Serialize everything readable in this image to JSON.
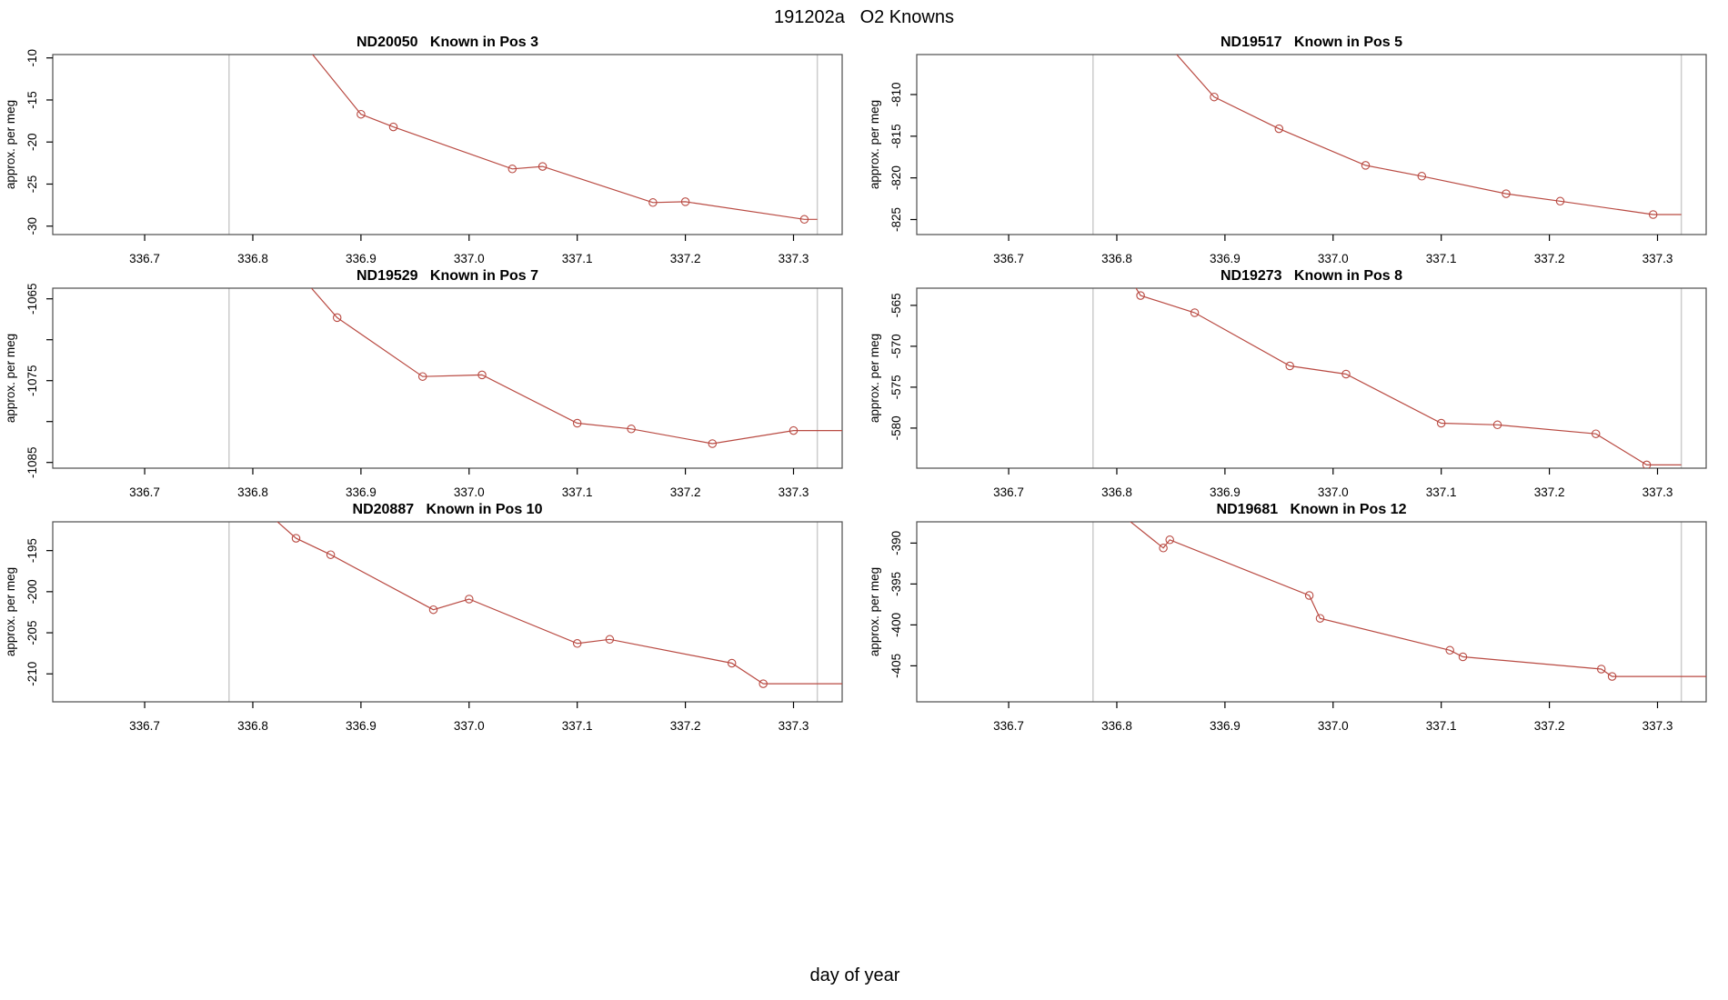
{
  "page": {
    "title": "191202a   O2 Knowns",
    "outer_xlabel": "day of year"
  },
  "colors": {
    "series": "#b94a42",
    "window_line": "#cccccc",
    "axis": "#000000",
    "box": "#4d4d4d"
  },
  "chart_data": [
    {
      "type": "line",
      "title": "ND20050   Known in Pos 3",
      "ylabel": "approx. per meg",
      "xlim": [
        336.615,
        337.345
      ],
      "ylim": [
        -31.0,
        -9.6
      ],
      "xtick_labels": [
        "336.7",
        "336.8",
        "336.9",
        "337.0",
        "337.1",
        "337.2",
        "337.3"
      ],
      "xticks": [
        336.7,
        336.8,
        336.9,
        337.0,
        337.1,
        337.2,
        337.3
      ],
      "yticks": [
        -10,
        -15,
        -20,
        -25,
        -30
      ],
      "ytick_labels": [
        "-10",
        "-15",
        "-20",
        "-25",
        "-30"
      ],
      "vlines": [
        336.778,
        337.322
      ],
      "markers": [
        [
          336.9,
          -16.7
        ],
        [
          336.93,
          -18.2
        ],
        [
          337.04,
          -23.2
        ],
        [
          337.068,
          -22.9
        ],
        [
          337.17,
          -27.2
        ],
        [
          337.2,
          -27.1
        ],
        [
          337.31,
          -29.2
        ]
      ],
      "line": [
        [
          336.82,
          -4.0
        ],
        [
          336.9,
          -16.7
        ],
        [
          336.93,
          -18.2
        ],
        [
          337.04,
          -23.2
        ],
        [
          337.068,
          -22.9
        ],
        [
          337.17,
          -27.2
        ],
        [
          337.2,
          -27.1
        ],
        [
          337.31,
          -29.2
        ],
        [
          337.322,
          -29.2
        ]
      ]
    },
    {
      "type": "line",
      "title": "ND19517   Known in Pos 5",
      "ylabel": "approx. per meg",
      "xlim": [
        336.615,
        337.345
      ],
      "ylim": [
        -826.8,
        -805.2
      ],
      "xtick_labels": [
        "336.7",
        "336.8",
        "336.9",
        "337.0",
        "337.1",
        "337.2",
        "337.3"
      ],
      "xticks": [
        336.7,
        336.8,
        336.9,
        337.0,
        337.1,
        337.2,
        337.3
      ],
      "yticks": [
        -810,
        -815,
        -820,
        -825
      ],
      "ytick_labels": [
        "-810",
        "-815",
        "-820",
        "-825"
      ],
      "vlines": [
        336.778,
        337.322
      ],
      "markers": [
        [
          336.89,
          -810.3
        ],
        [
          336.95,
          -814.1
        ],
        [
          337.03,
          -818.5
        ],
        [
          337.082,
          -819.8
        ],
        [
          337.16,
          -821.9
        ],
        [
          337.21,
          -822.8
        ],
        [
          337.296,
          -824.4
        ]
      ],
      "line": [
        [
          336.82,
          -800.0
        ],
        [
          336.89,
          -810.3
        ],
        [
          336.95,
          -814.1
        ],
        [
          337.03,
          -818.5
        ],
        [
          337.082,
          -819.8
        ],
        [
          337.16,
          -821.9
        ],
        [
          337.21,
          -822.8
        ],
        [
          337.296,
          -824.4
        ],
        [
          337.322,
          -824.4
        ]
      ]
    },
    {
      "type": "line",
      "title": "ND19529   Known in Pos 7",
      "ylabel": "approx. per meg",
      "xlim": [
        336.615,
        337.345
      ],
      "ylim": [
        -1085.7,
        -1063.7
      ],
      "xtick_labels": [
        "336.7",
        "336.8",
        "336.9",
        "337.0",
        "337.1",
        "337.2",
        "337.3"
      ],
      "xticks": [
        336.7,
        336.8,
        336.9,
        337.0,
        337.1,
        337.2,
        337.3
      ],
      "yticks": [
        -1065,
        -1070,
        -1075,
        -1080,
        -1085
      ],
      "ytick_labels": [
        "-1065",
        "",
        "-1075",
        "",
        "-1085"
      ],
      "vlines": [
        336.778,
        337.322
      ],
      "markers": [
        [
          336.878,
          -1067.3
        ],
        [
          336.957,
          -1074.5
        ],
        [
          337.012,
          -1074.3
        ],
        [
          337.1,
          -1080.2
        ],
        [
          337.15,
          -1080.9
        ],
        [
          337.225,
          -1082.7
        ],
        [
          337.3,
          -1081.1
        ]
      ],
      "line": [
        [
          336.81,
          -1057.0
        ],
        [
          336.878,
          -1067.3
        ],
        [
          336.957,
          -1074.5
        ],
        [
          337.012,
          -1074.3
        ],
        [
          337.1,
          -1080.2
        ],
        [
          337.15,
          -1080.9
        ],
        [
          337.225,
          -1082.7
        ],
        [
          337.3,
          -1081.1
        ],
        [
          337.345,
          -1081.1
        ]
      ]
    },
    {
      "type": "line",
      "title": "ND19273   Known in Pos 8",
      "ylabel": "approx. per meg",
      "xlim": [
        336.615,
        337.345
      ],
      "ylim": [
        -584.9,
        -562.9
      ],
      "xtick_labels": [
        "336.7",
        "336.8",
        "336.9",
        "337.0",
        "337.1",
        "337.2",
        "337.3"
      ],
      "xticks": [
        336.7,
        336.8,
        336.9,
        337.0,
        337.1,
        337.2,
        337.3
      ],
      "yticks": [
        -565,
        -570,
        -575,
        -580
      ],
      "ytick_labels": [
        "-565",
        "-570",
        "-575",
        "-580"
      ],
      "vlines": [
        336.778,
        337.322
      ],
      "markers": [
        [
          336.822,
          -563.8
        ],
        [
          336.872,
          -565.9
        ],
        [
          336.96,
          -572.4
        ],
        [
          337.012,
          -573.4
        ],
        [
          337.1,
          -579.4
        ],
        [
          337.152,
          -579.6
        ],
        [
          337.243,
          -580.7
        ],
        [
          337.29,
          -584.5
        ]
      ],
      "line": [
        [
          336.79,
          -557.0
        ],
        [
          336.822,
          -563.8
        ],
        [
          336.872,
          -565.9
        ],
        [
          336.96,
          -572.4
        ],
        [
          337.012,
          -573.4
        ],
        [
          337.1,
          -579.4
        ],
        [
          337.152,
          -579.6
        ],
        [
          337.243,
          -580.7
        ],
        [
          337.29,
          -584.5
        ],
        [
          337.322,
          -584.5
        ]
      ]
    },
    {
      "type": "line",
      "title": "ND20887   Known in Pos 10",
      "ylabel": "approx. per meg",
      "xlim": [
        336.615,
        337.345
      ],
      "ylim": [
        -213.4,
        -191.5
      ],
      "xtick_labels": [
        "336.7",
        "336.8",
        "336.9",
        "337.0",
        "337.1",
        "337.2",
        "337.3"
      ],
      "xticks": [
        336.7,
        336.8,
        336.9,
        337.0,
        337.1,
        337.2,
        337.3
      ],
      "yticks": [
        -195,
        -200,
        -205,
        -210
      ],
      "ytick_labels": [
        "-195",
        "-200",
        "-205",
        "-210"
      ],
      "vlines": [
        336.778,
        337.322
      ],
      "markers": [
        [
          336.84,
          -193.5
        ],
        [
          336.872,
          -195.5
        ],
        [
          336.967,
          -202.2
        ],
        [
          337.0,
          -200.9
        ],
        [
          337.1,
          -206.3
        ],
        [
          337.13,
          -205.8
        ],
        [
          337.243,
          -208.7
        ],
        [
          337.272,
          -211.2
        ]
      ],
      "line": [
        [
          336.78,
          -186.5
        ],
        [
          336.84,
          -193.5
        ],
        [
          336.872,
          -195.5
        ],
        [
          336.967,
          -202.2
        ],
        [
          337.0,
          -200.9
        ],
        [
          337.1,
          -206.3
        ],
        [
          337.13,
          -205.8
        ],
        [
          337.243,
          -208.7
        ],
        [
          337.272,
          -211.2
        ],
        [
          337.345,
          -211.2
        ]
      ]
    },
    {
      "type": "line",
      "title": "ND19681   Known in Pos 12",
      "ylabel": "approx. per meg",
      "xlim": [
        336.615,
        337.345
      ],
      "ylim": [
        -409.4,
        -387.4
      ],
      "xtick_labels": [
        "336.7",
        "336.8",
        "336.9",
        "337.0",
        "337.1",
        "337.2",
        "337.3"
      ],
      "xticks": [
        336.7,
        336.8,
        336.9,
        337.0,
        337.1,
        337.2,
        337.3
      ],
      "yticks": [
        -390,
        -395,
        -400,
        -405
      ],
      "ytick_labels": [
        "-390",
        "-395",
        "-400",
        "-405"
      ],
      "vlines": [
        336.778,
        337.322
      ],
      "markers": [
        [
          336.843,
          -390.6
        ],
        [
          336.849,
          -389.6
        ],
        [
          336.978,
          -396.4
        ],
        [
          336.988,
          -399.2
        ],
        [
          337.108,
          -403.1
        ],
        [
          337.12,
          -403.9
        ],
        [
          337.248,
          -405.4
        ],
        [
          337.258,
          -406.3
        ]
      ],
      "line": [
        [
          336.79,
          -385.0
        ],
        [
          336.843,
          -390.6
        ],
        [
          336.849,
          -389.6
        ],
        [
          336.978,
          -396.4
        ],
        [
          336.988,
          -399.2
        ],
        [
          337.108,
          -403.1
        ],
        [
          337.12,
          -403.9
        ],
        [
          337.248,
          -405.4
        ],
        [
          337.258,
          -406.3
        ],
        [
          337.345,
          -406.3
        ]
      ]
    }
  ]
}
